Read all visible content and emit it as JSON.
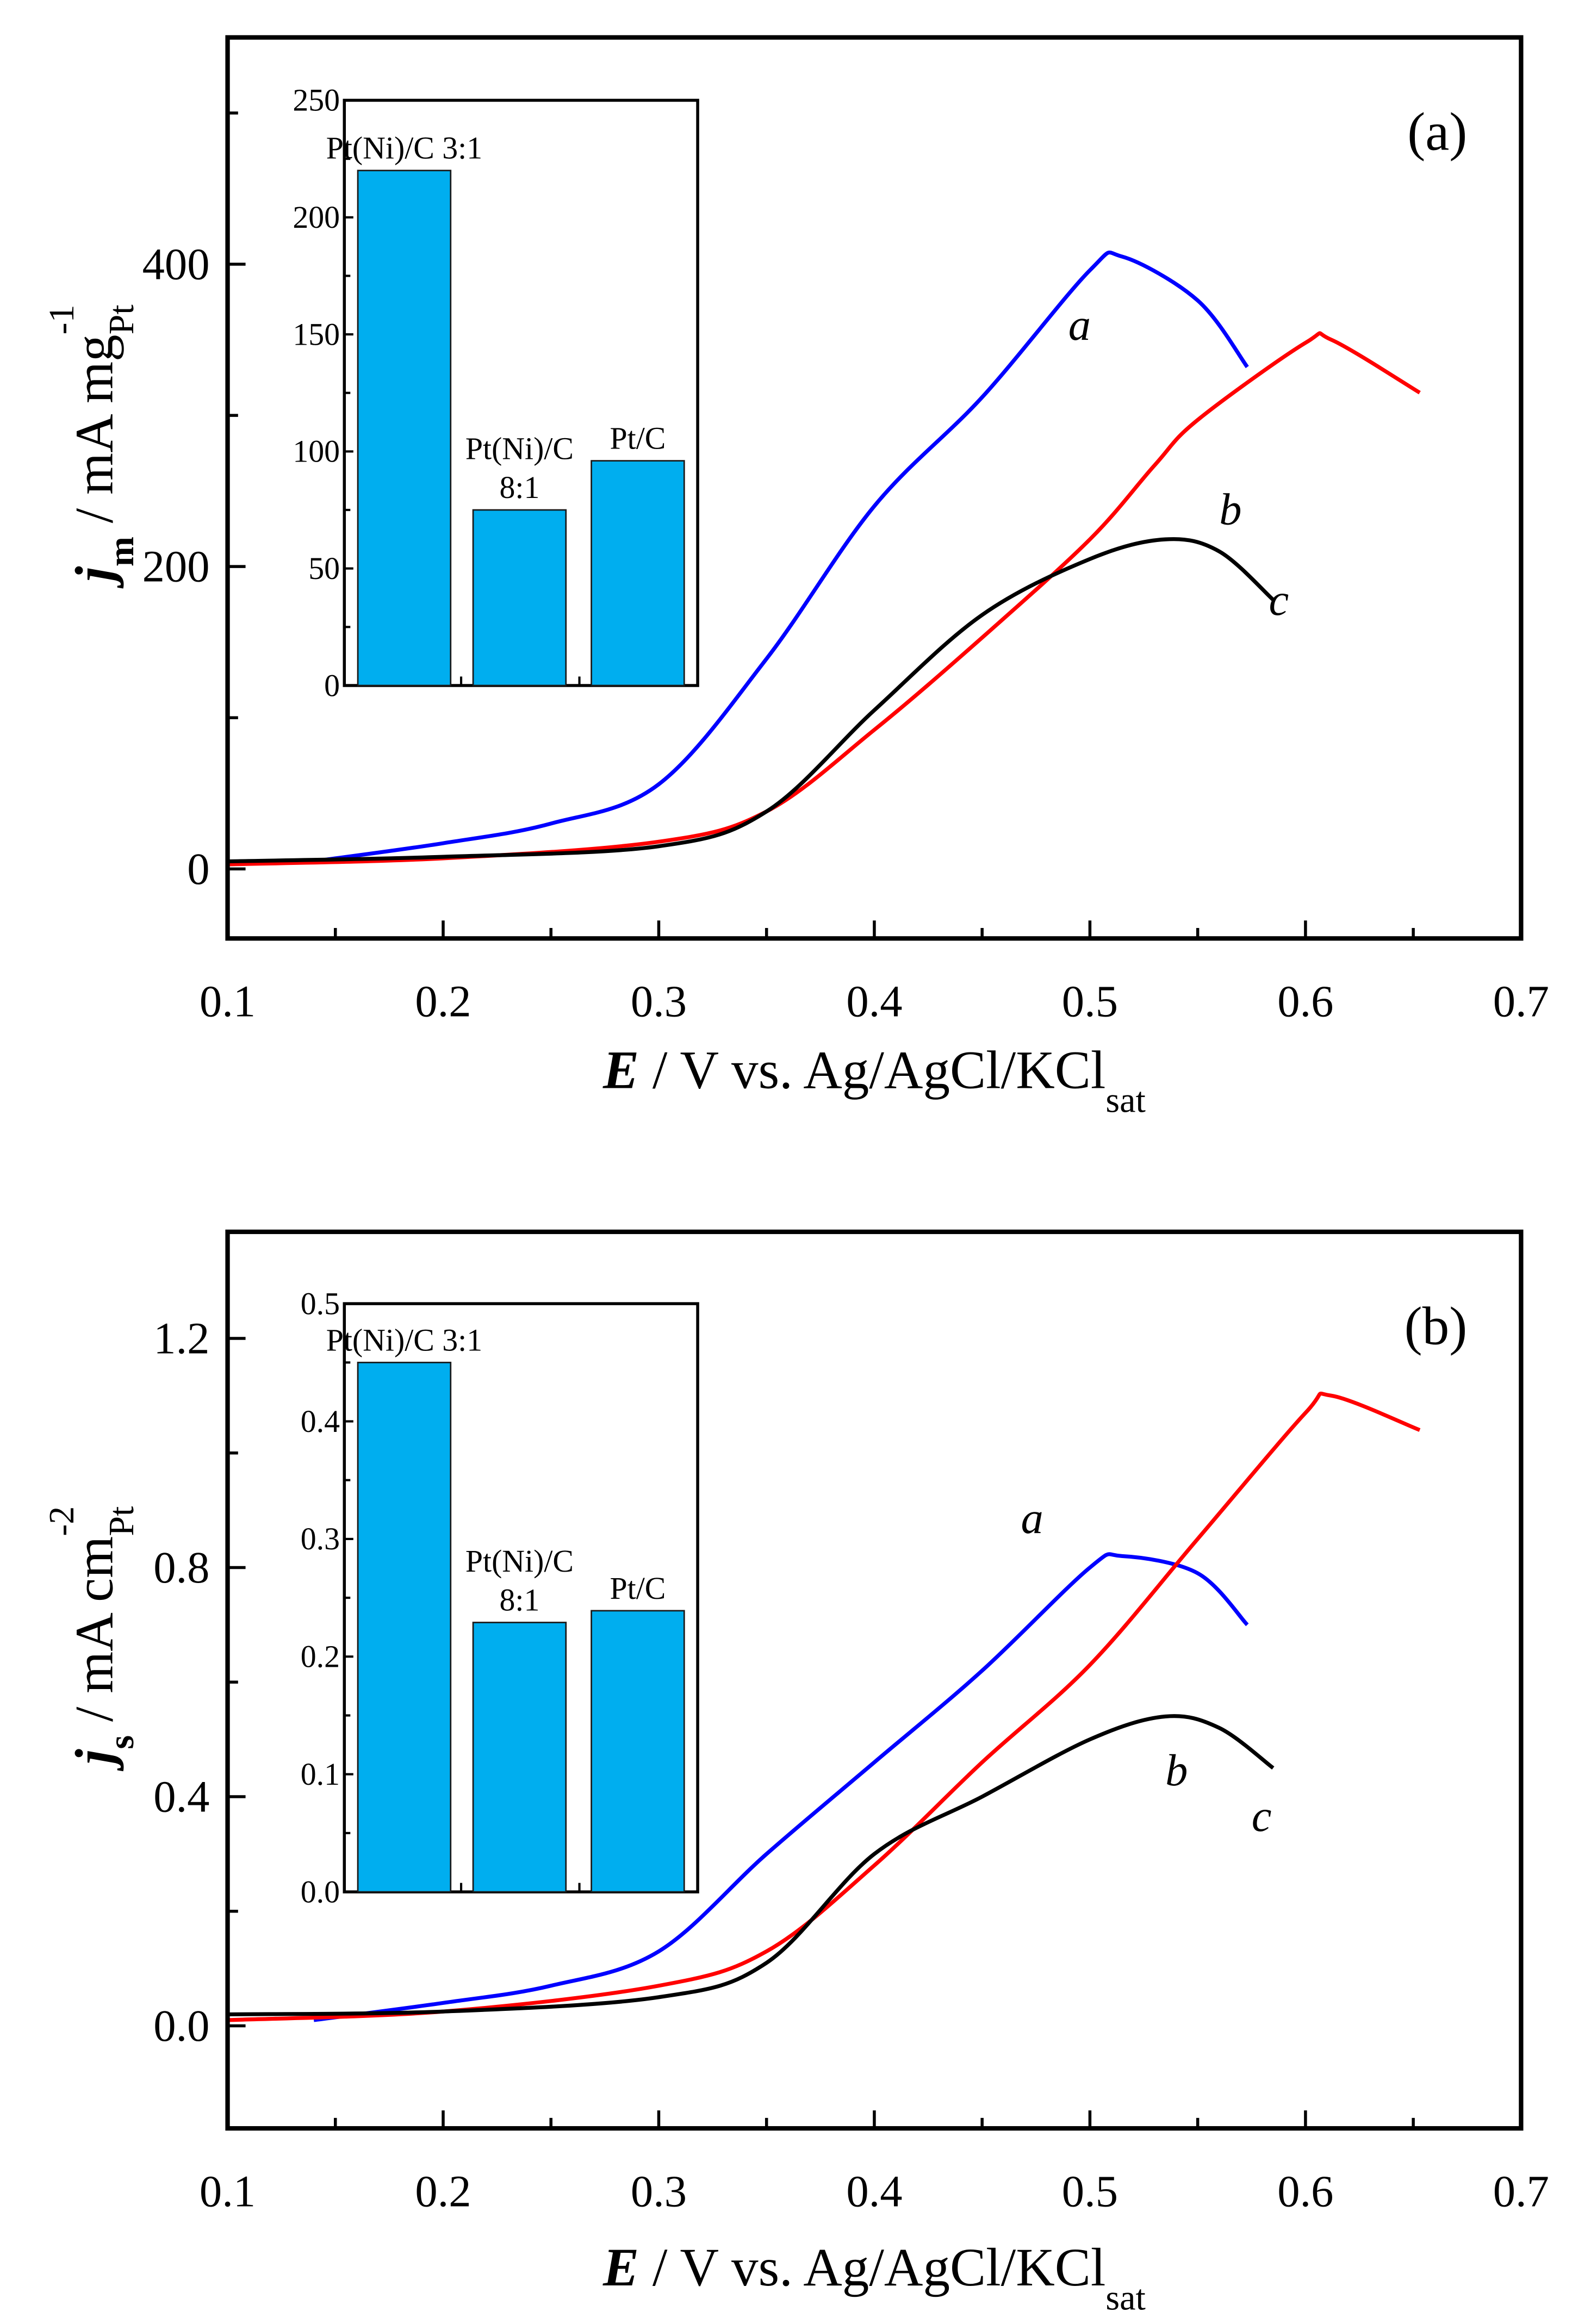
{
  "chart_data": [
    {
      "type": "line",
      "panel_label": "(a)",
      "xlabel": {
        "main": "E",
        "rest": " / V vs. Ag/AgCl/KCl",
        "sub": "sat"
      },
      "ylabel": {
        "main": "j",
        "sub1": "m",
        "rest": " / mA mg",
        "sub2": "Pt",
        "sup": "-1"
      },
      "xlim": [
        0.1,
        0.7
      ],
      "ylim": [
        -46,
        550
      ],
      "xticks": [
        "0.1",
        "0.2",
        "0.3",
        "0.4",
        "0.5",
        "0.6",
        "0.7"
      ],
      "yticks": [
        "0",
        "200",
        "400"
      ],
      "series": [
        {
          "name": "a",
          "color": "#0000ff",
          "x": [
            0.145,
            0.2,
            0.25,
            0.3,
            0.35,
            0.4,
            0.45,
            0.5,
            0.515,
            0.55,
            0.573
          ],
          "y": [
            6,
            17,
            30,
            56,
            139,
            240,
            312,
            396,
            405,
            376,
            332
          ]
        },
        {
          "name": "b",
          "color": "#ff0000",
          "x": [
            0.1,
            0.2,
            0.3,
            0.35,
            0.4,
            0.45,
            0.5,
            0.53,
            0.55,
            0.6,
            0.612,
            0.653
          ],
          "y": [
            3,
            7,
            18,
            38,
            92,
            153,
            218,
            267,
            297,
            348,
            350,
            315
          ]
        },
        {
          "name": "c",
          "color": "#000000",
          "x": [
            0.1,
            0.2,
            0.3,
            0.35,
            0.4,
            0.45,
            0.5,
            0.535,
            0.56,
            0.585
          ],
          "y": [
            5,
            8,
            15,
            38,
            105,
            168,
            205,
            218,
            210,
            178
          ]
        }
      ],
      "inset": {
        "type": "bar",
        "categories": [
          "Pt(Ni)/C 3:1",
          "Pt(Ni)/C 8:1",
          "Pt/C"
        ],
        "category_lines": [
          [
            "Pt(Ni)/C 3:1"
          ],
          [
            "Pt(Ni)/C",
            "8:1"
          ],
          [
            "Pt/C"
          ]
        ],
        "values": [
          220,
          75,
          96
        ],
        "ylim": [
          0,
          250
        ],
        "yticks": [
          "0",
          "50",
          "100",
          "150",
          "200",
          "250"
        ],
        "color": "#00aeef"
      }
    },
    {
      "type": "line",
      "panel_label": "(b)",
      "xlabel": {
        "main": "E",
        "rest": " / V vs. Ag/AgCl/KCl",
        "sub": "sat"
      },
      "ylabel": {
        "main": "j",
        "sub1": "s",
        "rest": " / mA cm",
        "sub2": "Pt",
        "sup": "-2"
      },
      "xlim": [
        0.1,
        0.7
      ],
      "ylim": [
        -0.179,
        1.386
      ],
      "xticks": [
        "0.1",
        "0.2",
        "0.3",
        "0.4",
        "0.5",
        "0.6",
        "0.7"
      ],
      "yticks": [
        "0.0",
        "0.4",
        "0.8",
        "1.2"
      ],
      "series": [
        {
          "name": "a",
          "color": "#0000ff",
          "x": [
            0.14,
            0.2,
            0.25,
            0.3,
            0.35,
            0.4,
            0.45,
            0.5,
            0.515,
            0.55,
            0.573
          ],
          "y": [
            0.01,
            0.04,
            0.07,
            0.13,
            0.3,
            0.46,
            0.62,
            0.8,
            0.82,
            0.79,
            0.7
          ]
        },
        {
          "name": "b",
          "color": "#ff0000",
          "x": [
            0.1,
            0.2,
            0.3,
            0.35,
            0.4,
            0.45,
            0.5,
            0.55,
            0.6,
            0.612,
            0.653
          ],
          "y": [
            0.01,
            0.025,
            0.07,
            0.13,
            0.28,
            0.46,
            0.63,
            0.85,
            1.07,
            1.1,
            1.04
          ]
        },
        {
          "name": "c",
          "color": "#000000",
          "x": [
            0.1,
            0.2,
            0.3,
            0.35,
            0.4,
            0.45,
            0.5,
            0.535,
            0.56,
            0.585
          ],
          "y": [
            0.02,
            0.025,
            0.05,
            0.11,
            0.3,
            0.4,
            0.5,
            0.54,
            0.52,
            0.45
          ]
        }
      ],
      "inset": {
        "type": "bar",
        "categories": [
          "Pt(Ni)/C 3:1",
          "Pt(Ni)/C 8:1",
          "Pt/C"
        ],
        "category_lines": [
          [
            "Pt(Ni)/C 3:1"
          ],
          [
            "Pt(Ni)/C",
            "8:1"
          ],
          [
            "Pt/C"
          ]
        ],
        "values": [
          0.45,
          0.229,
          0.239
        ],
        "ylim": [
          0,
          0.5
        ],
        "yticks": [
          "0.0",
          "0.1",
          "0.2",
          "0.3",
          "0.4",
          "0.5"
        ],
        "color": "#00aeef"
      }
    }
  ]
}
